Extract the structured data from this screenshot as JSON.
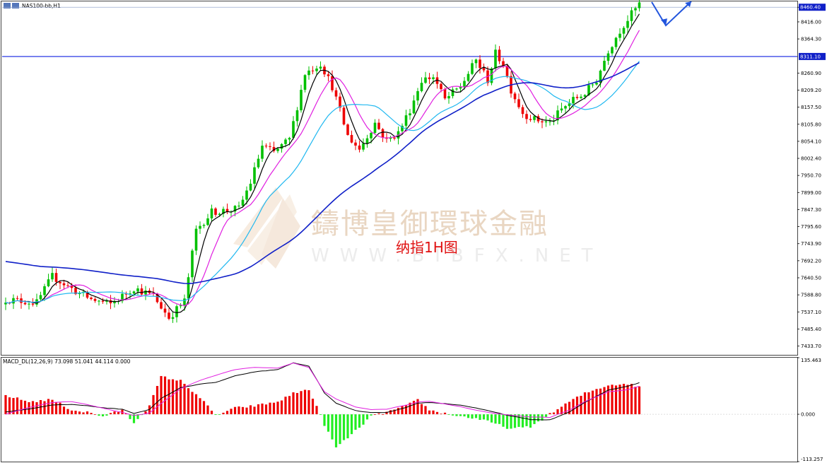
{
  "window": {
    "title": "NAS100-bb,H1",
    "watermark_cn": "鑄博皇御環球金融",
    "watermark_en": "WWW.BIBFX.NET",
    "caption": "纳指1H图"
  },
  "colors": {
    "bull": "#00c000",
    "bear": "#ee0000",
    "ma_fast": "#000000",
    "ma_mid": "#e020e0",
    "ma_slow": "#20b8f0",
    "ma_long": "#1020c8",
    "hline": "#1020e0",
    "arrow": "#2255dd",
    "macd_pos": "#ee0000",
    "macd_neg": "#22ee22",
    "macd_line": "#000000",
    "signal_line": "#e020e0"
  },
  "chart_data": [
    {
      "type": "candlestick",
      "symbol": "NAS100-bb",
      "timeframe": "H1",
      "ylim": [
        7407,
        8478
      ],
      "y_ticks": [
        "8460.40",
        "8416.00",
        "8364.30",
        "8260.90",
        "8209.20",
        "8157.50",
        "8105.80",
        "8054.10",
        "8002.40",
        "7950.70",
        "7899.00",
        "7847.30",
        "7795.60",
        "7743.90",
        "7692.20",
        "7640.50",
        "7588.80",
        "7537.10",
        "7485.40",
        "7433.70"
      ],
      "horizontal_lines": [
        {
          "price": 8460.4,
          "label": "8460.40"
        },
        {
          "price": 8311.1,
          "label": "8311.10"
        }
      ],
      "anchors": [
        [
          0,
          7560,
          7575
        ],
        [
          8,
          7530,
          7565
        ],
        [
          12,
          7630,
          7645
        ],
        [
          18,
          7590,
          7600
        ],
        [
          22,
          7580,
          7575
        ],
        [
          27,
          7550,
          7560
        ],
        [
          33,
          7620,
          7610
        ],
        [
          38,
          7590,
          7585
        ],
        [
          42,
          7530,
          7520
        ],
        [
          46,
          7555,
          7570
        ],
        [
          49,
          7805,
          7785
        ],
        [
          53,
          7810,
          7840
        ],
        [
          57,
          7835,
          7845
        ],
        [
          60,
          7830,
          7850
        ],
        [
          63,
          7900,
          7930
        ],
        [
          66,
          7980,
          8040
        ],
        [
          69,
          8080,
          8020
        ],
        [
          73,
          8010,
          8060
        ],
        [
          77,
          8200,
          8260
        ],
        [
          81,
          8300,
          8290
        ],
        [
          84,
          8240,
          8220
        ],
        [
          88,
          8090,
          8070
        ],
        [
          91,
          8040,
          8030
        ],
        [
          95,
          8060,
          8110
        ],
        [
          98,
          8060,
          8055
        ],
        [
          101,
          8050,
          8080
        ],
        [
          104,
          8130,
          8150
        ],
        [
          107,
          8200,
          8240
        ],
        [
          110,
          8230,
          8250
        ],
        [
          113,
          8190,
          8180
        ],
        [
          117,
          8200,
          8220
        ],
        [
          121,
          8270,
          8300
        ],
        [
          124,
          8250,
          8240
        ],
        [
          126,
          8260,
          8320
        ],
        [
          128,
          8270,
          8290
        ],
        [
          130,
          8230,
          8210
        ],
        [
          133,
          8150,
          8140
        ],
        [
          136,
          8110,
          8120
        ],
        [
          140,
          8115,
          8110
        ],
        [
          143,
          8130,
          8150
        ],
        [
          146,
          8170,
          8180
        ],
        [
          149,
          8180,
          8200
        ],
        [
          152,
          8230,
          8240
        ],
        [
          155,
          8300,
          8330
        ],
        [
          158,
          8380,
          8390
        ],
        [
          161,
          8420,
          8440
        ],
        [
          163,
          8460,
          8470
        ]
      ],
      "moving_averages": [
        {
          "period": "fast",
          "color_key": "ma_fast"
        },
        {
          "period": "mid",
          "color_key": "ma_mid"
        },
        {
          "period": "slow",
          "color_key": "ma_slow"
        },
        {
          "period": "long",
          "color_key": "ma_long"
        }
      ],
      "projection_arrow": [
        [
          8476,
          8476
        ],
        [
          8405,
          8405
        ],
        [
          8478,
          8478
        ]
      ]
    },
    {
      "type": "bar",
      "name": "MACD_DL(12,26,9)",
      "values_label": "73.098 51.041 44.114 0.000",
      "ylim": [
        -113.257,
        135.463
      ],
      "y_ticks": [
        "135.463",
        "0.000",
        "-113.257"
      ],
      "anchors": [
        [
          0,
          45,
          0
        ],
        [
          6,
          30,
          10
        ],
        [
          12,
          35,
          20
        ],
        [
          17,
          10,
          25
        ],
        [
          21,
          5,
          22
        ],
        [
          25,
          -5,
          18
        ],
        [
          30,
          10,
          12
        ],
        [
          33,
          -20,
          5
        ],
        [
          37,
          20,
          10
        ],
        [
          40,
          90,
          30
        ],
        [
          45,
          80,
          60
        ],
        [
          50,
          40,
          75
        ],
        [
          54,
          -3,
          85
        ],
        [
          59,
          15,
          100
        ],
        [
          64,
          20,
          110
        ],
        [
          70,
          30,
          115
        ],
        [
          74,
          50,
          130
        ],
        [
          78,
          60,
          120
        ],
        [
          82,
          -25,
          60
        ],
        [
          85,
          -80,
          40
        ],
        [
          90,
          -40,
          15
        ],
        [
          94,
          -5,
          5
        ],
        [
          98,
          5,
          4
        ],
        [
          103,
          20,
          15
        ],
        [
          106,
          35,
          25
        ],
        [
          109,
          10,
          30
        ],
        [
          113,
          2,
          28
        ],
        [
          117,
          -5,
          25
        ],
        [
          121,
          -10,
          18
        ],
        [
          125,
          -20,
          10
        ],
        [
          130,
          -35,
          0
        ],
        [
          135,
          -30,
          -10
        ],
        [
          140,
          0,
          -15
        ],
        [
          145,
          30,
          2
        ],
        [
          149,
          50,
          25
        ],
        [
          155,
          70,
          55
        ],
        [
          160,
          73,
          65
        ],
        [
          163,
          65,
          75
        ]
      ]
    }
  ]
}
